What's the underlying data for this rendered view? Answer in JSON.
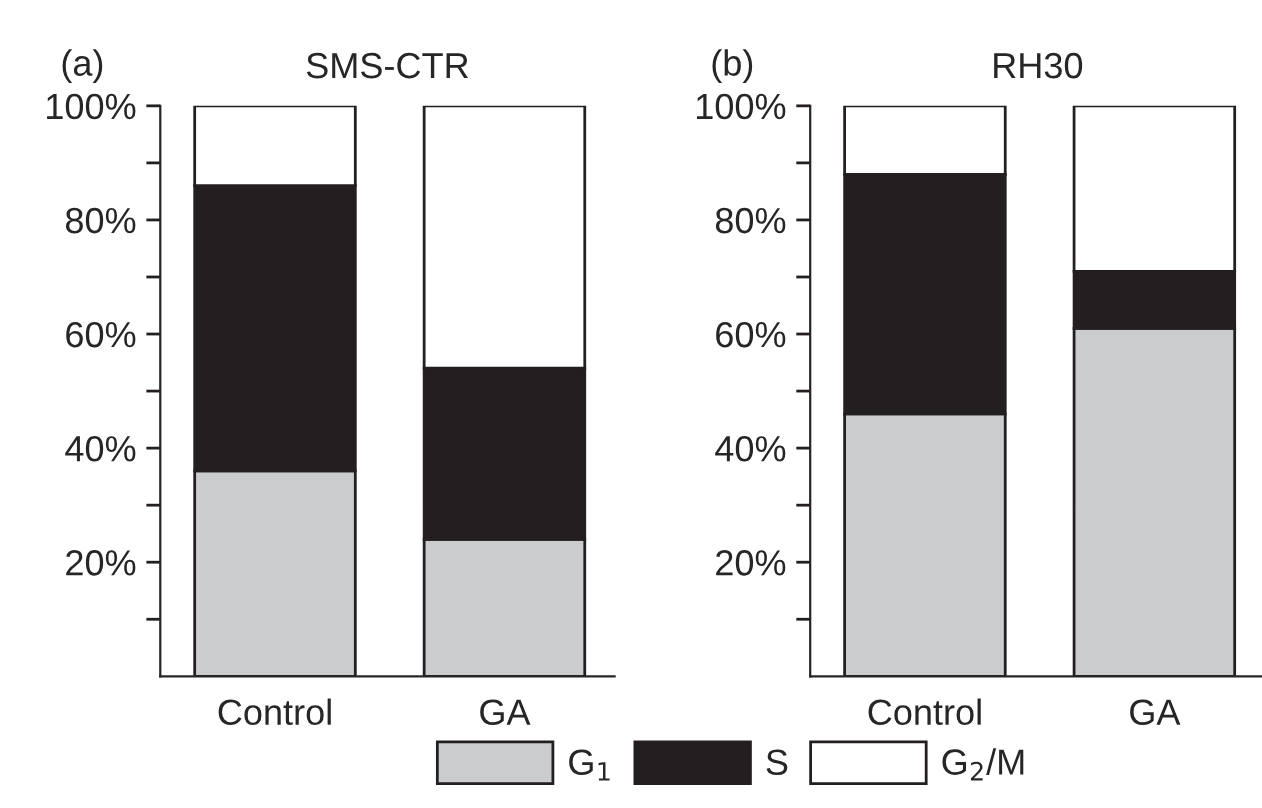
{
  "chart_data": [
    {
      "type": "bar",
      "stacked": true,
      "title": "SMS-CTR",
      "annotations": [
        "(a)"
      ],
      "categories": [
        "Control",
        "GA"
      ],
      "ylim": [
        0,
        100
      ],
      "yticks": [
        {
          "value": 10,
          "label": null
        },
        {
          "value": 20,
          "label": "20%"
        },
        {
          "value": 30,
          "label": null
        },
        {
          "value": 40,
          "label": "40%"
        },
        {
          "value": 50,
          "label": null
        },
        {
          "value": 60,
          "label": "60%"
        },
        {
          "value": 70,
          "label": null
        },
        {
          "value": 80,
          "label": "80%"
        },
        {
          "value": 90,
          "label": null
        },
        {
          "value": 100,
          "label": "100%"
        }
      ],
      "legend": "bottom",
      "grid": false,
      "series": [
        {
          "name": "G$_{1}$",
          "color": "#cbcccd",
          "values": [
            36,
            24
          ]
        },
        {
          "name": "S",
          "color": "#231f20",
          "values": [
            50,
            30
          ]
        },
        {
          "name": "G$_{2}$/M",
          "color": "#ffffff",
          "values": [
            14,
            46
          ]
        }
      ]
    },
    {
      "type": "bar",
      "stacked": true,
      "title": "RH30",
      "annotations": [
        "(b)"
      ],
      "categories": [
        "Control",
        "GA"
      ],
      "ylim": [
        0,
        100
      ],
      "yticks": [
        {
          "value": 10,
          "label": null
        },
        {
          "value": 20,
          "label": "20%"
        },
        {
          "value": 30,
          "label": null
        },
        {
          "value": 40,
          "label": "40%"
        },
        {
          "value": 50,
          "label": null
        },
        {
          "value": 60,
          "label": "60%"
        },
        {
          "value": 70,
          "label": null
        },
        {
          "value": 80,
          "label": "80%"
        },
        {
          "value": 90,
          "label": null
        },
        {
          "value": 100,
          "label": "100%"
        }
      ],
      "grid": false,
      "series": [
        {
          "color": "#cbcccd",
          "values": [
            46,
            61
          ]
        },
        {
          "color": "#231f20",
          "values": [
            42,
            10
          ]
        },
        {
          "color": "#ffffff",
          "values": [
            12,
            29
          ]
        }
      ]
    }
  ]
}
